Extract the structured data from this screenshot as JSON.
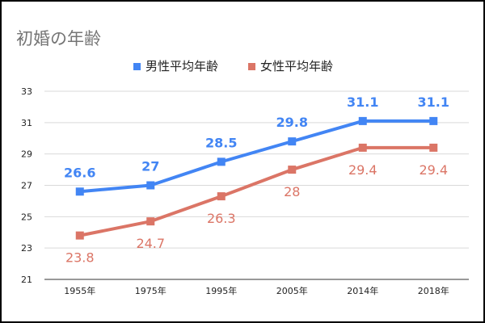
{
  "chart_data": {
    "type": "line",
    "title": "初婚の年齢",
    "categories": [
      "1955年",
      "1975年",
      "1995年",
      "2005年",
      "2014年",
      "2018年"
    ],
    "series": [
      {
        "name": "男性平均年齢",
        "values": [
          26.6,
          27,
          28.5,
          29.8,
          31.1,
          31.1
        ],
        "color": "#4285f4",
        "label_position": "above",
        "label_bold": true
      },
      {
        "name": "女性平均年齢",
        "values": [
          23.8,
          24.7,
          26.3,
          28,
          29.4,
          29.4
        ],
        "color": "#db7566",
        "label_position": "below",
        "label_bold": false
      }
    ],
    "ylim": [
      21,
      33
    ],
    "yticks": [
      21,
      23,
      25,
      27,
      29,
      31,
      33
    ],
    "grid": true,
    "legend_position": "top"
  }
}
